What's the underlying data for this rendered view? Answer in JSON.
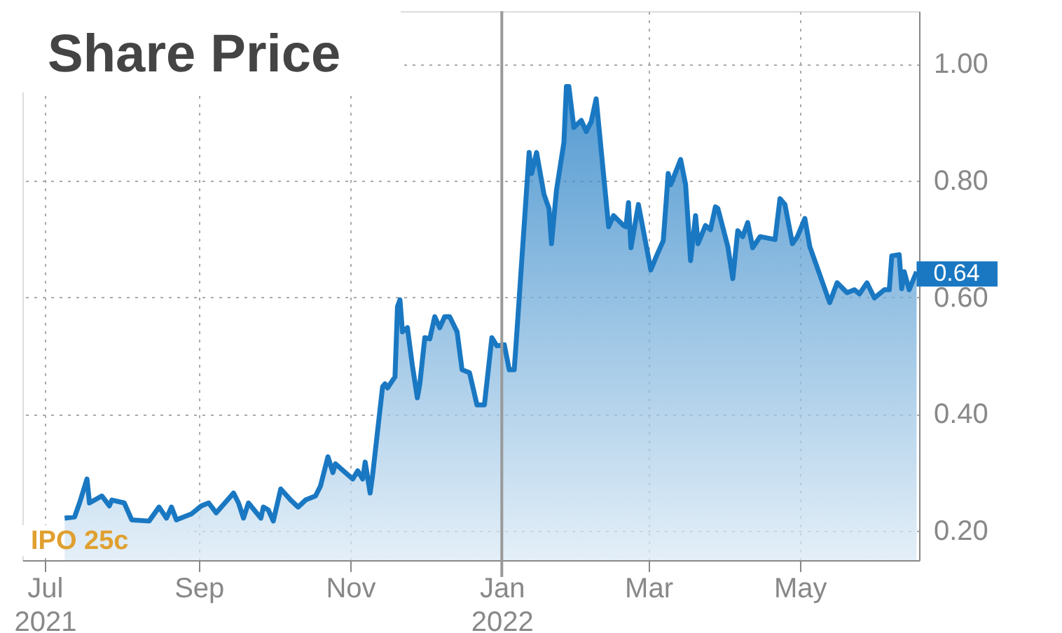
{
  "chart_data": {
    "type": "area",
    "title": "Share Price",
    "x": [
      "2021-07-09",
      "2021-07-13",
      "2021-07-15",
      "2021-07-18",
      "2021-07-19",
      "2021-07-24",
      "2021-07-27",
      "2021-07-28",
      "2021-08-02",
      "2021-08-05",
      "2021-08-12",
      "2021-08-16",
      "2021-08-19",
      "2021-08-21",
      "2021-08-23",
      "2021-08-29",
      "2021-09-02",
      "2021-09-05",
      "2021-09-08",
      "2021-09-15",
      "2021-09-17",
      "2021-09-19",
      "2021-09-21",
      "2021-09-26",
      "2021-09-27",
      "2021-09-29",
      "2021-10-01",
      "2021-10-04",
      "2021-10-08",
      "2021-10-11",
      "2021-10-14",
      "2021-10-18",
      "2021-10-20",
      "2021-10-23",
      "2021-10-25",
      "2021-10-26",
      "2021-11-02",
      "2021-11-04",
      "2021-11-06",
      "2021-11-07",
      "2021-11-09",
      "2021-11-10",
      "2021-11-14",
      "2021-11-15",
      "2021-11-16",
      "2021-11-19",
      "2021-11-20",
      "2021-11-21",
      "2021-11-22",
      "2021-11-24",
      "2021-11-26",
      "2021-11-28",
      "2021-11-29",
      "2021-12-01",
      "2021-12-03",
      "2021-12-05",
      "2021-12-07",
      "2021-12-09",
      "2021-12-11",
      "2021-12-14",
      "2021-12-16",
      "2021-12-19",
      "2021-12-22",
      "2021-12-25",
      "2021-12-28",
      "2021-12-30",
      "2022-01-02",
      "2022-01-04",
      "2022-01-06",
      "2022-01-07",
      "2022-01-12",
      "2022-01-13",
      "2022-01-15",
      "2022-01-18",
      "2022-01-20",
      "2022-01-21",
      "2022-01-23",
      "2022-01-26",
      "2022-01-27",
      "2022-01-28",
      "2022-01-30",
      "2022-02-02",
      "2022-02-04",
      "2022-02-06",
      "2022-02-08",
      "2022-02-13",
      "2022-02-15",
      "2022-02-19",
      "2022-02-20",
      "2022-02-21",
      "2022-02-22",
      "2022-02-25",
      "2022-03-02",
      "2022-03-04",
      "2022-03-07",
      "2022-03-09",
      "2022-03-10",
      "2022-03-14",
      "2022-03-16",
      "2022-03-18",
      "2022-03-20",
      "2022-03-21",
      "2022-03-24",
      "2022-03-26",
      "2022-03-28",
      "2022-03-29",
      "2022-04-02",
      "2022-04-04",
      "2022-04-06",
      "2022-04-08",
      "2022-04-10",
      "2022-04-12",
      "2022-04-15",
      "2022-04-21",
      "2022-04-23",
      "2022-04-25",
      "2022-04-28",
      "2022-04-30",
      "2022-05-03",
      "2022-05-05",
      "2022-05-07",
      "2022-05-10",
      "2022-05-13",
      "2022-05-16",
      "2022-05-20",
      "2022-05-23",
      "2022-05-25",
      "2022-05-28",
      "2022-05-31",
      "2022-06-04",
      "2022-06-06",
      "2022-06-07",
      "2022-06-10",
      "2022-06-11",
      "2022-06-12",
      "2022-06-14",
      "2022-06-17"
    ],
    "series": [
      {
        "color": "#1a78c2",
        "values": [
          0.222,
          0.224,
          0.248,
          0.289,
          0.248,
          0.26,
          0.243,
          0.253,
          0.248,
          0.219,
          0.217,
          0.241,
          0.222,
          0.241,
          0.219,
          0.229,
          0.243,
          0.248,
          0.231,
          0.265,
          0.248,
          0.222,
          0.248,
          0.222,
          0.241,
          0.236,
          0.217,
          0.272,
          0.253,
          0.241,
          0.253,
          0.26,
          0.277,
          0.327,
          0.3,
          0.315,
          0.289,
          0.303,
          0.289,
          0.318,
          0.265,
          0.296,
          0.447,
          0.452,
          0.445,
          0.464,
          0.584,
          0.596,
          0.541,
          0.548,
          0.483,
          0.428,
          0.452,
          0.531,
          0.529,
          0.567,
          0.548,
          0.567,
          0.567,
          0.541,
          0.476,
          0.471,
          0.416,
          0.416,
          0.531,
          0.517,
          0.519,
          0.476,
          0.476,
          0.536,
          0.848,
          0.812,
          0.848,
          0.776,
          0.752,
          0.692,
          0.783,
          0.865,
          0.961,
          0.961,
          0.891,
          0.903,
          0.884,
          0.901,
          0.94,
          0.721,
          0.74,
          0.723,
          0.721,
          0.762,
          0.685,
          0.759,
          0.647,
          0.668,
          0.697,
          0.812,
          0.793,
          0.836,
          0.793,
          0.663,
          0.74,
          0.692,
          0.723,
          0.716,
          0.755,
          0.752,
          0.687,
          0.632,
          0.714,
          0.704,
          0.728,
          0.685,
          0.704,
          0.699,
          0.769,
          0.759,
          0.692,
          0.704,
          0.735,
          0.687,
          0.663,
          0.627,
          0.591,
          0.625,
          0.608,
          0.613,
          0.606,
          0.625,
          0.599,
          0.613,
          0.613,
          0.671,
          0.673,
          0.615,
          0.644,
          0.613,
          0.644
        ]
      }
    ],
    "xlim": [
      "2021-06-22",
      "2022-06-18"
    ],
    "xticks": [
      {
        "value": "2021-07-01",
        "label": "Jul\n2021"
      },
      {
        "value": "2021-09-01",
        "label": "Sep"
      },
      {
        "value": "2021-11-01",
        "label": "Nov"
      },
      {
        "value": "2022-01-01",
        "label": "Jan\n2022"
      },
      {
        "value": "2022-03-01",
        "label": "Mar"
      },
      {
        "value": "2022-05-01",
        "label": "May"
      }
    ],
    "ylim": [
      0.15,
      1.09
    ],
    "yticks": [
      {
        "value": 0.2,
        "label": "0.20"
      },
      {
        "value": 0.4,
        "label": "0.40"
      },
      {
        "value": 0.6,
        "label": "0.60"
      },
      {
        "value": 0.8,
        "label": "0.80"
      },
      {
        "value": 1.0,
        "label": "1.00"
      }
    ],
    "ref_lines": [
      {
        "axis": "x",
        "value": "2022-01-01",
        "color": "#999999",
        "line_style": "solid"
      }
    ],
    "annotations": [
      "IPO 25c",
      {
        "text": "0.64",
        "x": "2022-06-17",
        "y": 0.64
      }
    ],
    "grid": true,
    "line_style": "solid",
    "marker": "none"
  }
}
